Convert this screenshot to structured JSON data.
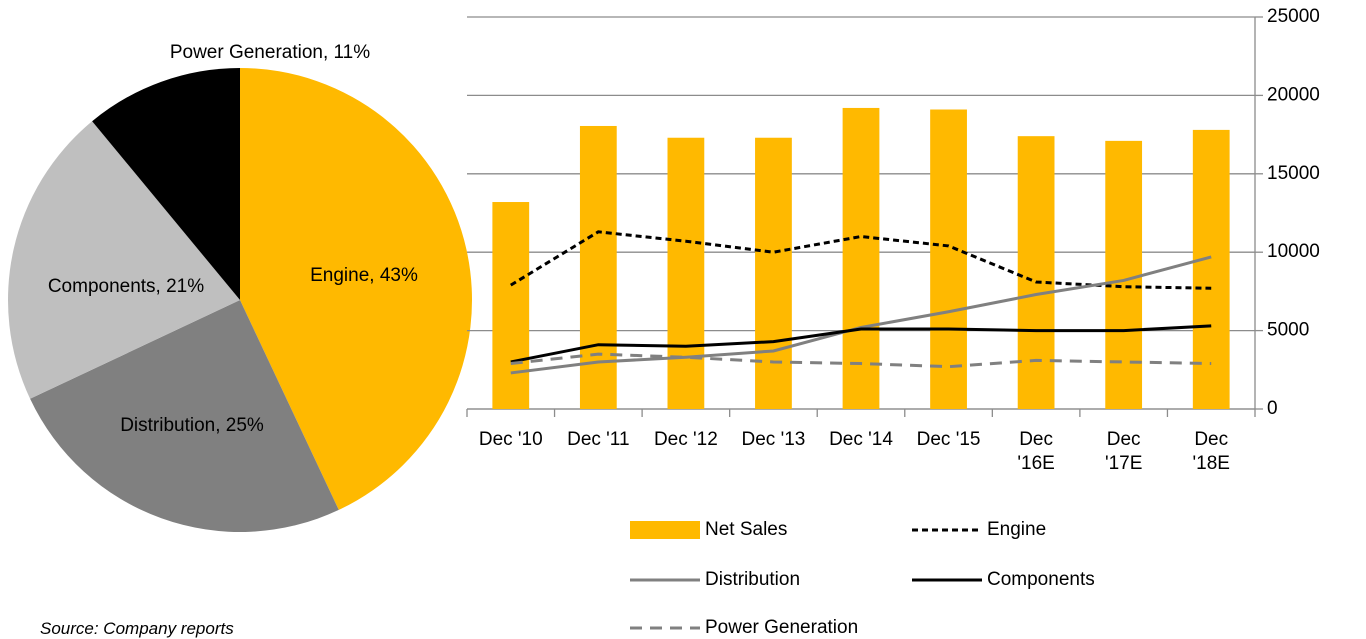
{
  "chart_data": [
    {
      "type": "pie",
      "values": [
        43,
        25,
        21,
        11
      ],
      "value_labels": [
        "Engine, 43%",
        "Distribution, 25%",
        "Components, 21%",
        "Power Generation, 11%"
      ],
      "colors": [
        "#ffb900",
        "#808080",
        "#bfbfbf",
        "#000000"
      ]
    },
    {
      "type": "bar-line",
      "categories": [
        "Dec '10",
        "Dec '11",
        "Dec '12",
        "Dec '13",
        "Dec '14",
        "Dec '15",
        "Dec '16E",
        "Dec '17E",
        "Dec '18E"
      ],
      "series": [
        {
          "name": "Net Sales",
          "type": "bar",
          "color": "#ffb900",
          "axis": "y2",
          "values": [
            13200,
            18050,
            17300,
            17300,
            19200,
            19100,
            17400,
            17100,
            17800
          ]
        },
        {
          "name": "Engine",
          "type": "line",
          "dash": "dashed",
          "color": "#000000",
          "axis": "y2",
          "values": [
            7900,
            11300,
            10700,
            10000,
            11000,
            10400,
            8100,
            7800,
            7700
          ]
        },
        {
          "name": "Distribution",
          "type": "line",
          "dash": "solid",
          "color": "#808080",
          "axis": "y2",
          "values": [
            2300,
            3000,
            3300,
            3700,
            5200,
            6200,
            7300,
            8200,
            9700
          ]
        },
        {
          "name": "Components",
          "type": "line",
          "dash": "solid",
          "color": "#000000",
          "axis": "y2",
          "values": [
            3000,
            4100,
            4000,
            4300,
            5100,
            5100,
            5000,
            5000,
            5300
          ]
        },
        {
          "name": "Power Generation",
          "type": "line",
          "dash": "long-dashed",
          "color": "#808080",
          "axis": "y2",
          "values": [
            2900,
            3500,
            3300,
            3000,
            2900,
            2700,
            3100,
            3000,
            2900
          ]
        }
      ],
      "y2lim": [
        0,
        25000
      ],
      "y2ticks": [
        0,
        5000,
        10000,
        15000,
        20000,
        25000
      ],
      "grid": true
    }
  ],
  "source": "Source: Company reports"
}
